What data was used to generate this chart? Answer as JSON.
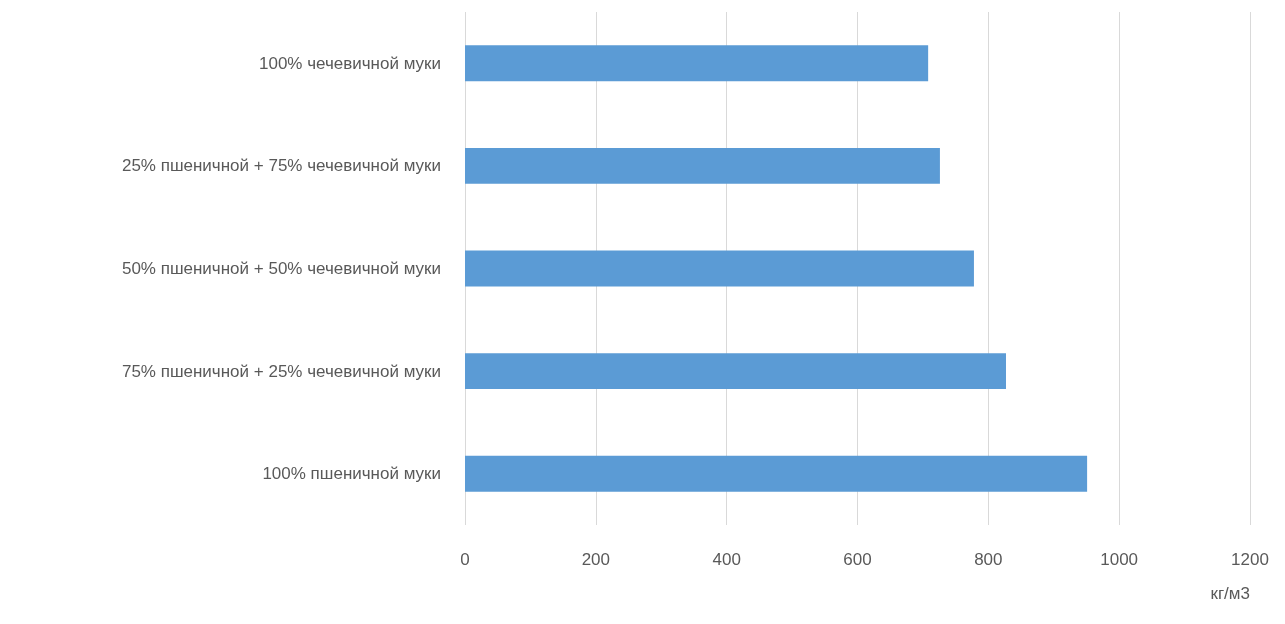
{
  "chart_data": {
    "type": "bar",
    "orientation": "horizontal",
    "categories": [
      "100% чечевичной муки",
      "25% пшеничной + 75% чечевичной муки",
      "50% пшеничной + 50% чечевичной муки",
      "75% пшеничной + 25% чечевичной муки",
      "100% пшеничной муки"
    ],
    "values": [
      708,
      726,
      778,
      827,
      951
    ],
    "color": "#5b9bd5",
    "xlabel": "кг/м3",
    "xlim": [
      0,
      1200
    ],
    "xticks": [
      0,
      200,
      400,
      600,
      800,
      1000,
      1200
    ],
    "grid": "x"
  }
}
